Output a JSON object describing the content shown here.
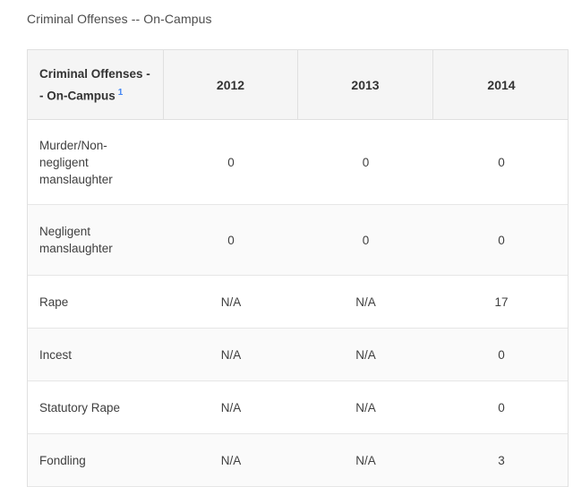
{
  "page": {
    "title": "Criminal Offenses -- On-Campus"
  },
  "table": {
    "header": {
      "label": "Criminal Offenses -- On-Campus",
      "footnote_marker": "1",
      "years": [
        "2012",
        "2013",
        "2014"
      ]
    },
    "rows": [
      {
        "offense": "Murder/Non-negligent manslaughter",
        "values": [
          "0",
          "0",
          "0"
        ]
      },
      {
        "offense": "Negligent manslaughter",
        "values": [
          "0",
          "0",
          "0"
        ]
      },
      {
        "offense": "Rape",
        "values": [
          "N/A",
          "N/A",
          "17"
        ]
      },
      {
        "offense": "Incest",
        "values": [
          "N/A",
          "N/A",
          "0"
        ]
      },
      {
        "offense": "Statutory Rape",
        "values": [
          "N/A",
          "N/A",
          "0"
        ]
      },
      {
        "offense": "Fondling",
        "values": [
          "N/A",
          "N/A",
          "3"
        ]
      }
    ]
  },
  "colors": {
    "accent_blue": "#4285f4",
    "header_bg": "#f5f5f5",
    "row_alt_bg": "#fafafa",
    "border": "#e0e0e0"
  },
  "chart_data": {
    "type": "table",
    "title": "Criminal Offenses -- On-Campus",
    "columns": [
      "Criminal Offenses -- On-Campus",
      "2012",
      "2013",
      "2014"
    ],
    "rows": [
      [
        "Murder/Non-negligent manslaughter",
        "0",
        "0",
        "0"
      ],
      [
        "Negligent manslaughter",
        "0",
        "0",
        "0"
      ],
      [
        "Rape",
        "N/A",
        "N/A",
        "17"
      ],
      [
        "Incest",
        "N/A",
        "N/A",
        "0"
      ],
      [
        "Statutory Rape",
        "N/A",
        "N/A",
        "0"
      ],
      [
        "Fondling",
        "N/A",
        "N/A",
        "3"
      ]
    ]
  }
}
